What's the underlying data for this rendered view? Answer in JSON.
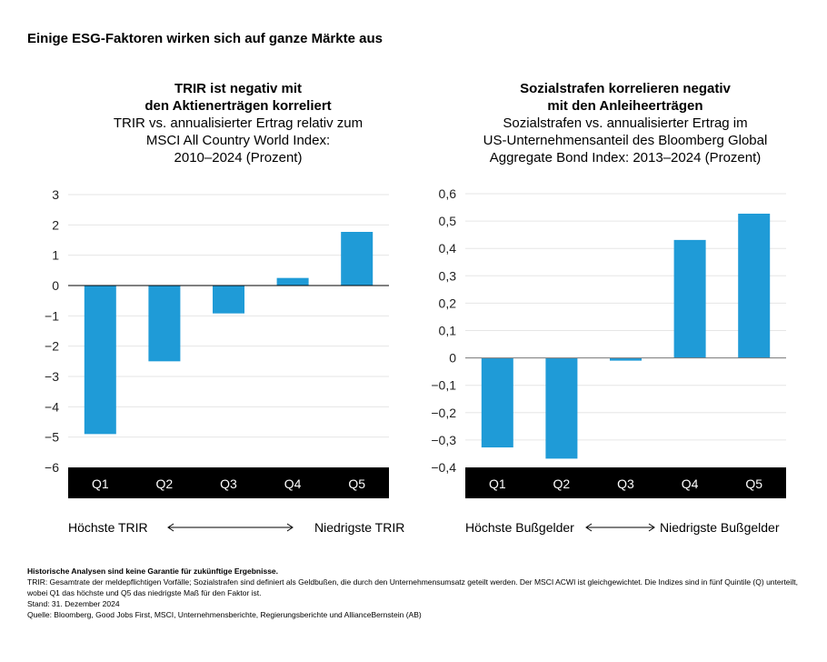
{
  "title": "Einige ESG-Faktoren wirken sich auf ganze Märkte aus",
  "chart_data": [
    {
      "type": "bar",
      "title": "TRIR ist negativ mit den Aktienerträgen korreliert",
      "title_lines": [
        "TRIR ist negativ mit",
        "den Aktienerträgen korreliert"
      ],
      "subtitle_lines": [
        "TRIR vs. annualisierter Ertrag relativ zum",
        "MSCI All Country World Index:",
        "2010–2024 (Prozent)"
      ],
      "categories": [
        "Q1",
        "Q2",
        "Q3",
        "Q4",
        "Q5"
      ],
      "values": [
        -4.9,
        -2.5,
        -0.92,
        0.25,
        1.77
      ],
      "ylim": [
        -6,
        3
      ],
      "yticks": [
        3,
        2,
        1,
        0,
        -1,
        -2,
        -3,
        -4,
        -5,
        -6
      ],
      "ytick_labels": [
        "3",
        "2",
        "1",
        "0",
        "−1",
        "−2",
        "−3",
        "−4",
        "−5",
        "−6"
      ],
      "grid": true,
      "bar_color": "#1f9bd7",
      "legend_left": "Höchste TRIR",
      "legend_right": "Niedrigste TRIR"
    },
    {
      "type": "bar",
      "title": "Sozialstrafen korrelieren negativ mit den Anleiheerträgen",
      "title_lines": [
        "Sozialstrafen korrelieren negativ",
        "mit den Anleiheerträgen"
      ],
      "subtitle_lines": [
        "Sozialstrafen vs. annualisierter Ertrag im",
        "US-Unternehmensanteil des Bloomberg Global",
        "Aggregate Bond Index: 2013–2024 (Prozent)"
      ],
      "categories": [
        "Q1",
        "Q2",
        "Q3",
        "Q4",
        "Q5"
      ],
      "values": [
        -0.327,
        -0.368,
        -0.01,
        0.431,
        0.527
      ],
      "ylim": [
        -0.4,
        0.6
      ],
      "yticks": [
        0.6,
        0.5,
        0.4,
        0.3,
        0.2,
        0.1,
        0,
        -0.1,
        -0.2,
        -0.3,
        -0.4
      ],
      "ytick_labels": [
        "0,6",
        "0,5",
        "0,4",
        "0,3",
        "0,2",
        "0,1",
        "0",
        "−0,1",
        "−0,2",
        "−0,3",
        "−0,4"
      ],
      "grid": true,
      "bar_color": "#1f9bd7",
      "legend_left": "Höchste Bußgelder",
      "legend_right": "Niedrigste Bußgelder"
    }
  ],
  "notes": {
    "disclaimer": "Historische Analysen sind keine Garantie für zukünftige Ergebnisse.",
    "definition": "TRIR: Gesamtrate der meldepflichtigen Vorfälle; Sozialstrafen sind definiert als Geldbußen, die durch den Unternehmensumsatz geteilt werden. Der MSCI ACWI ist gleichgewichtet. Die Indizes sind in fünf Quintile (Q) unterteilt, wobei Q1 das höchste und Q5 das niedrigste Maß für den Faktor ist.",
    "date": "Stand: 31. Dezember 2024",
    "source": "Quelle: Bloomberg, Good Jobs First, MSCI, Unternehmensberichte, Regierungsberichte und AllianceBernstein (AB)"
  }
}
